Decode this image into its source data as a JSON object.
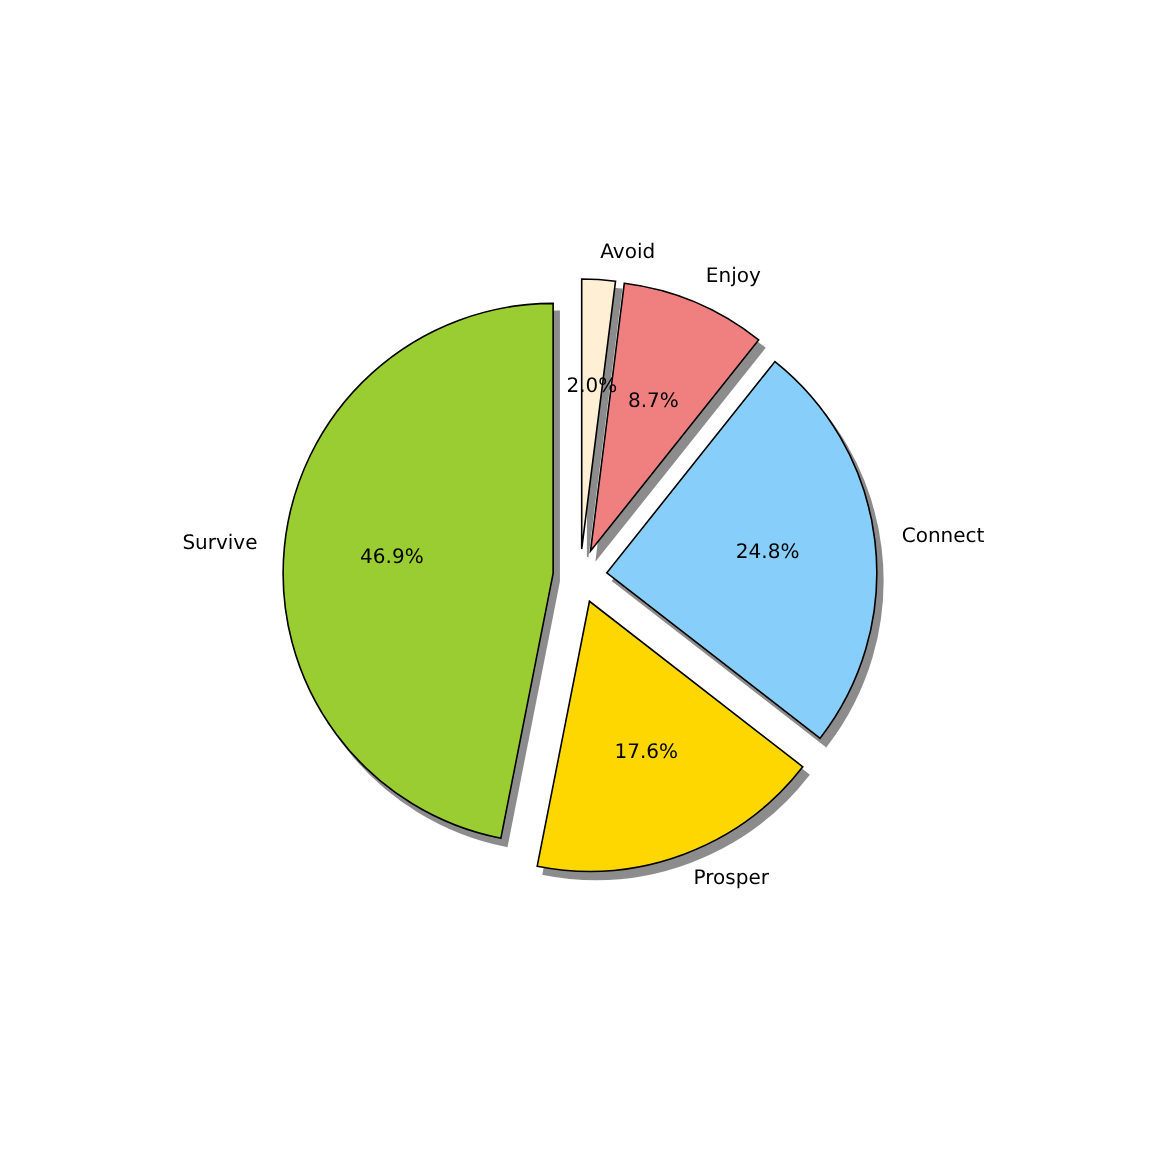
{
  "chart_data": {
    "type": "pie",
    "categories": [
      "Survive",
      "Prosper",
      "Connect",
      "Enjoy",
      "Avoid"
    ],
    "values": [
      46.9,
      17.6,
      24.8,
      8.7,
      2.0
    ],
    "value_labels": [
      "46.9%",
      "17.6%",
      "24.8%",
      "8.7%",
      "2.0%"
    ],
    "colors": [
      "#9acd32",
      "#ffd700",
      "#87cefa",
      "#f08080",
      "#ffefd5"
    ]
  }
}
